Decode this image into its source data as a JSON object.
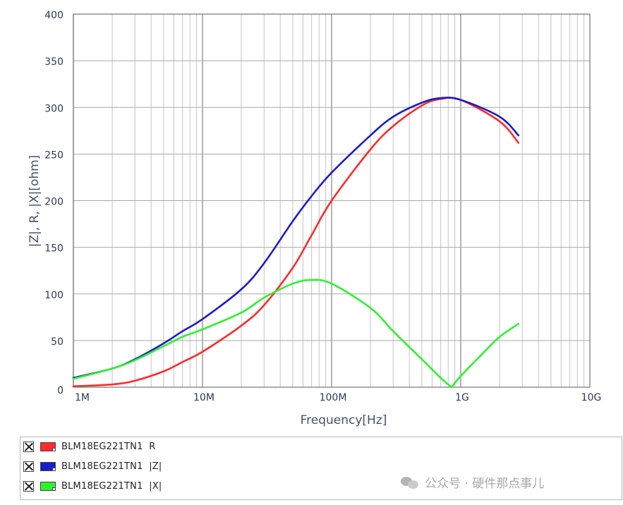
{
  "chart_data": {
    "type": "line",
    "title": "",
    "xlabel": "Frequency[Hz]",
    "ylabel": "|Z|, R, |X|[ohm]",
    "x_scale": "log",
    "xlim": [
      1000000,
      10000000000
    ],
    "ylim": [
      0,
      400
    ],
    "x_ticks": [
      {
        "value": 1000000,
        "label": "1M"
      },
      {
        "value": 10000000,
        "label": "10M"
      },
      {
        "value": 100000000,
        "label": "100M"
      },
      {
        "value": 1000000000,
        "label": "1G"
      },
      {
        "value": 10000000000,
        "label": "10G"
      }
    ],
    "y_ticks": [
      0,
      50,
      100,
      150,
      200,
      250,
      300,
      350,
      400
    ],
    "grid": true,
    "legend_position": "bottom",
    "series": [
      {
        "name": "BLM18EG221TN1  R",
        "color": "#ff2a2a",
        "points": [
          [
            1000000,
            1
          ],
          [
            2000000,
            3
          ],
          [
            3000000,
            7
          ],
          [
            5000000,
            17
          ],
          [
            7000000,
            27
          ],
          [
            10000000,
            38
          ],
          [
            20000000,
            66
          ],
          [
            30000000,
            88
          ],
          [
            50000000,
            128
          ],
          [
            70000000,
            163
          ],
          [
            100000000,
            200
          ],
          [
            200000000,
            255
          ],
          [
            300000000,
            280
          ],
          [
            500000000,
            302
          ],
          [
            700000000,
            309
          ],
          [
            1000000000,
            308
          ],
          [
            2000000000,
            285
          ],
          [
            2800000000,
            262
          ]
        ]
      },
      {
        "name": "BLM18EG221TN1  |Z|",
        "color": "#1c1ccc",
        "points": [
          [
            1000000,
            10
          ],
          [
            2000000,
            20
          ],
          [
            3000000,
            30
          ],
          [
            5000000,
            47
          ],
          [
            7000000,
            60
          ],
          [
            10000000,
            73
          ],
          [
            20000000,
            105
          ],
          [
            30000000,
            133
          ],
          [
            50000000,
            178
          ],
          [
            70000000,
            205
          ],
          [
            100000000,
            230
          ],
          [
            200000000,
            270
          ],
          [
            300000000,
            290
          ],
          [
            500000000,
            305
          ],
          [
            700000000,
            310
          ],
          [
            1000000000,
            308
          ],
          [
            2000000000,
            290
          ],
          [
            2800000000,
            270
          ]
        ]
      },
      {
        "name": "BLM18EG221TN1  |X|",
        "color": "#2ff22f",
        "points": [
          [
            1000000,
            9
          ],
          [
            2000000,
            20
          ],
          [
            3000000,
            29
          ],
          [
            5000000,
            44
          ],
          [
            7000000,
            54
          ],
          [
            10000000,
            62
          ],
          [
            20000000,
            80
          ],
          [
            30000000,
            96
          ],
          [
            50000000,
            111
          ],
          [
            70000000,
            115
          ],
          [
            100000000,
            111
          ],
          [
            200000000,
            85
          ],
          [
            300000000,
            60
          ],
          [
            500000000,
            30
          ],
          [
            700000000,
            10
          ],
          [
            850000000,
            0
          ],
          [
            1000000000,
            12
          ],
          [
            1500000000,
            37
          ],
          [
            2000000000,
            54
          ],
          [
            2800000000,
            68
          ]
        ]
      }
    ]
  },
  "legend": {
    "items": [
      {
        "label": "BLM18EG221TN1  R",
        "color": "#ff2a2a"
      },
      {
        "label": "BLM18EG221TN1  |Z|",
        "color": "#1c1ccc"
      },
      {
        "label": "BLM18EG221TN1  |X|",
        "color": "#2ff22f"
      }
    ]
  },
  "watermark": {
    "text": "公众号 · 硬件那点事儿",
    "icon": "wechat-logo-icon"
  }
}
